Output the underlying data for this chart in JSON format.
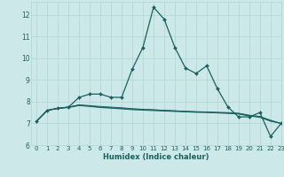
{
  "xlabel": "Humidex (Indice chaleur)",
  "bg_color": "#cce8e8",
  "grid_color": "#b0d4d4",
  "line_color": "#1a6060",
  "xlim": [
    -0.5,
    23
  ],
  "ylim": [
    6,
    12.6
  ],
  "yticks": [
    6,
    7,
    8,
    9,
    10,
    11,
    12
  ],
  "xticks": [
    0,
    1,
    2,
    3,
    4,
    5,
    6,
    7,
    8,
    9,
    10,
    11,
    12,
    13,
    14,
    15,
    16,
    17,
    18,
    19,
    20,
    21,
    22,
    23
  ],
  "series_main": [
    7.1,
    7.6,
    7.7,
    7.75,
    8.2,
    8.35,
    8.35,
    8.2,
    8.2,
    9.5,
    10.5,
    12.35,
    11.8,
    10.5,
    9.55,
    9.3,
    9.65,
    8.6,
    7.75,
    7.3,
    7.3,
    7.5,
    6.4,
    7.0
  ],
  "series_flat1": [
    7.1,
    7.6,
    7.7,
    7.75,
    7.85,
    7.82,
    7.78,
    7.75,
    7.72,
    7.68,
    7.65,
    7.63,
    7.6,
    7.58,
    7.56,
    7.54,
    7.53,
    7.51,
    7.5,
    7.47,
    7.38,
    7.32,
    7.15,
    7.0
  ],
  "series_flat2": [
    7.1,
    7.6,
    7.7,
    7.75,
    7.85,
    7.8,
    7.75,
    7.72,
    7.69,
    7.66,
    7.64,
    7.62,
    7.6,
    7.58,
    7.55,
    7.53,
    7.52,
    7.5,
    7.48,
    7.45,
    7.36,
    7.3,
    7.12,
    7.0
  ],
  "series_flat3": [
    7.1,
    7.6,
    7.68,
    7.73,
    7.82,
    7.78,
    7.73,
    7.7,
    7.67,
    7.63,
    7.61,
    7.59,
    7.57,
    7.55,
    7.53,
    7.51,
    7.5,
    7.48,
    7.46,
    7.43,
    7.34,
    7.28,
    7.1,
    7.0
  ]
}
